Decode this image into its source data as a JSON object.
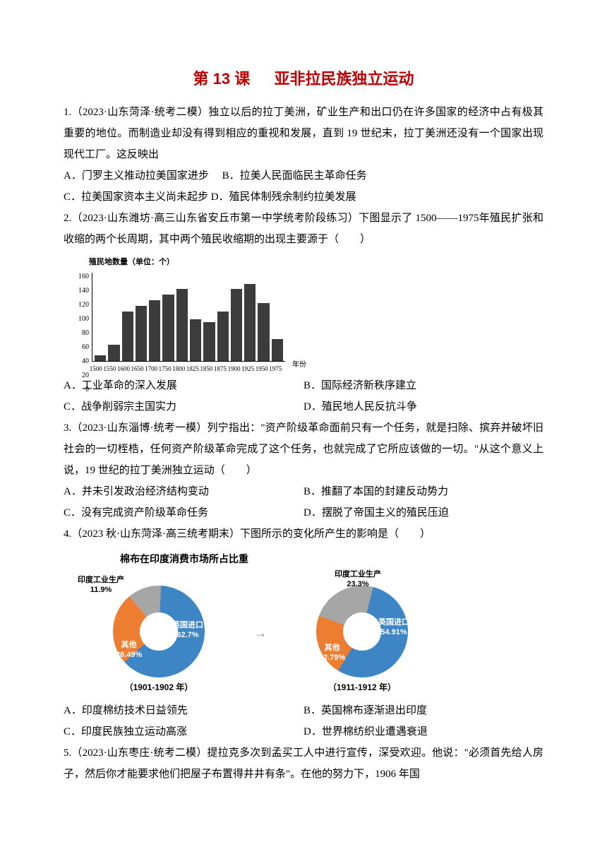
{
  "title": {
    "lesson": "第 13 课",
    "name": "亚非拉民族独立运动"
  },
  "title_color": "#c00000",
  "q1": {
    "stem": "1.（2023·山东菏泽·统考二模）独立以后的拉丁美洲，矿业生产和出口仍在许多国家的经济中占有极其重要的地位。而制造业却没有得到相应的重视和发展，直到 19 世纪末，拉丁美洲还没有一个国家出现现代工厂。这反映出",
    "A": "A．门罗主义推动拉美国家进步",
    "B": "B．拉美人民面临民主革命任务",
    "C": "C．拉美国家资本主义尚未起步",
    "D": "D．殖民体制残余制约拉美发展"
  },
  "q2": {
    "stem": "2.（2023·山东潍坊·高三山东省安丘市第一中学统考阶段练习）下图显示了 1500——1975年殖民扩张和收缩的两个长周期，其中两个殖民收缩期的出现主要源于（　　）",
    "A": "A．工业革命的深入发展",
    "B": "B．国际经济新秩序建立",
    "C": "C．战争削弱宗主国实力",
    "D": "D．殖民地人民反抗斗争"
  },
  "bar_chart": {
    "type": "bar",
    "ylabel": "殖民地数量（单位：个）",
    "xlabel_suffix": "年份",
    "xticks": [
      "1500",
      "1550",
      "1600",
      "1650",
      "1700",
      "1750",
      "1800",
      "1825",
      "1850",
      "1875",
      "1900",
      "1925",
      "1950",
      "1975"
    ],
    "yticks": [
      "160",
      "140",
      "120",
      "100",
      "80",
      "60",
      "40",
      "20",
      "0"
    ],
    "ymax": 160,
    "values": [
      10,
      30,
      90,
      100,
      110,
      120,
      130,
      75,
      70,
      90,
      130,
      140,
      105,
      40
    ],
    "bar_color": "#3c3c3c",
    "axis_color": "#000000",
    "background_color": "#ffffff"
  },
  "q3": {
    "stem": "3.（2023·山东淄博·统考一模）列宁指出：\"资产阶级革命面前只有一个任务，就是扫除、摈弃并破坏旧社会的一切桎梏，任何资产阶级革命完成了这个任务，也就完成了它所应该做的一切。\"从这个意义上说，19 世纪的拉丁美洲独立运动（　　）",
    "A": "A．并未引发政治经济结构变动",
    "B": "B．推翻了本国的封建反动势力",
    "C": "C．没有完成资产阶级革命任务",
    "D": "D．摆脱了帝国主义的殖民压迫"
  },
  "q4": {
    "stem": "4.（2023 秋·山东菏泽·高三统考期末）下图所示的变化所产生的影响是（　　）",
    "A": "A．印度棉纺技术日益领先",
    "B": "B．英国棉布逐渐退出印度",
    "C": "C．印度民族独立运动高涨",
    "D": "D．世界棉纺织业遭遇衰退"
  },
  "donut": {
    "title": "棉布在印度消费市场所占比重",
    "left": {
      "subtitle": "（1901-1902 年）",
      "slices": [
        {
          "label": "印度工业生产",
          "value": "11.9%",
          "color": "#a6a6a6"
        },
        {
          "label": "其他",
          "value": "26.49%",
          "color": "#ed7d31"
        },
        {
          "label": "英国进口",
          "value": "62.7%",
          "color": "#3e85c6"
        }
      ]
    },
    "right": {
      "subtitle": "（1911-1912 年）",
      "slices": [
        {
          "label": "印度工业生产",
          "value": "23.3%",
          "color": "#a6a6a6"
        },
        {
          "label": "其他",
          "value": "22.79%",
          "color": "#ed7d31"
        },
        {
          "label": "英国进口",
          "value": "54.91%",
          "color": "#3e85c6"
        }
      ]
    }
  },
  "q5": {
    "stem": "5.（2023·山东枣庄·统考二模）提拉克多次到孟买工人中进行宣传，深受欢迎。他说：\"必须首先给人房子，然后你才能要求他们把屋子布置得井井有条\"。在他的努力下，1906 年国"
  }
}
